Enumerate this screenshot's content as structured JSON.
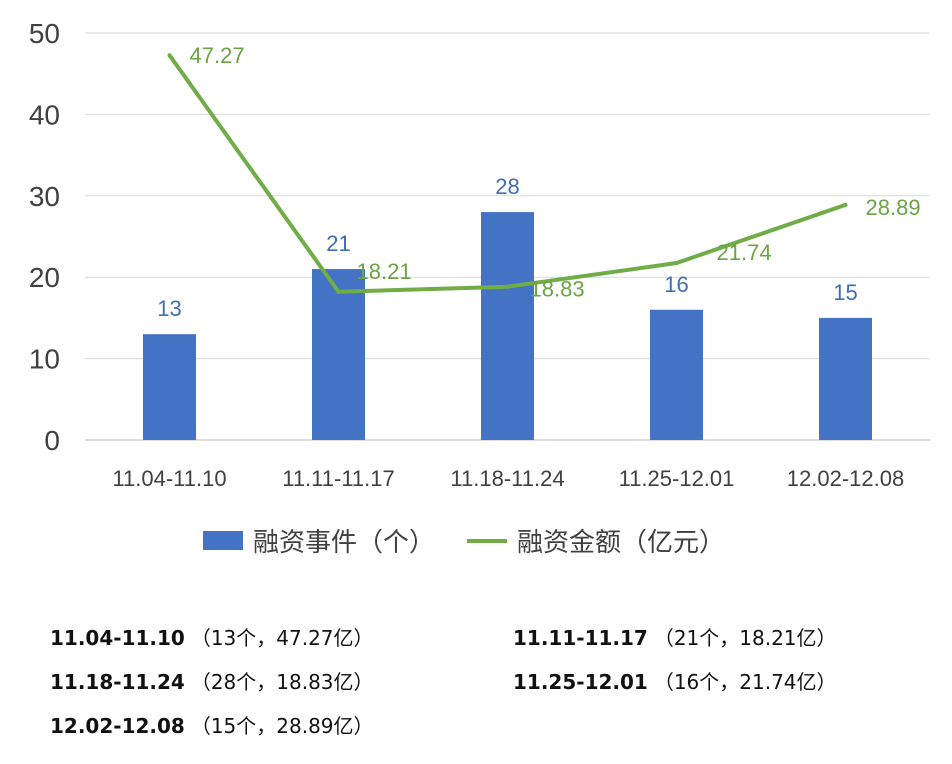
{
  "chart_data": {
    "type": "bar+line",
    "categories": [
      "11.04-11.10",
      "11.11-11.17",
      "11.18-11.24",
      "11.25-12.01",
      "12.02-12.08"
    ],
    "series": [
      {
        "name": "融资事件（个）",
        "type": "bar",
        "color": "#4472C4",
        "values": [
          13,
          21,
          28,
          16,
          15
        ],
        "labels": [
          "13",
          "21",
          "28",
          "16",
          "15"
        ]
      },
      {
        "name": "融资金额（亿元）",
        "type": "line",
        "color": "#70AD47",
        "values": [
          47.27,
          18.21,
          18.83,
          21.74,
          28.89
        ],
        "labels": [
          "47.27",
          "18.21",
          "18.83",
          "21.74",
          "28.89"
        ]
      }
    ],
    "ylim": [
      0,
      50
    ],
    "yticks": [
      "0",
      "10",
      "20",
      "30",
      "40",
      "50"
    ],
    "grid": true,
    "legend": "bottom",
    "title": "",
    "xlabel": "",
    "ylabel": ""
  },
  "summary": [
    {
      "period": "11.04-11.10",
      "detail": "（13个，47.27亿）"
    },
    {
      "period": "11.11-11.17",
      "detail": "（21个，18.21亿）"
    },
    {
      "period": "11.18-11.24",
      "detail": "（28个，18.83亿）"
    },
    {
      "period": "11.25-12.01",
      "detail": "（16个，21.74亿）"
    },
    {
      "period": "12.02-12.08",
      "detail": "（15个，28.89亿）"
    }
  ]
}
